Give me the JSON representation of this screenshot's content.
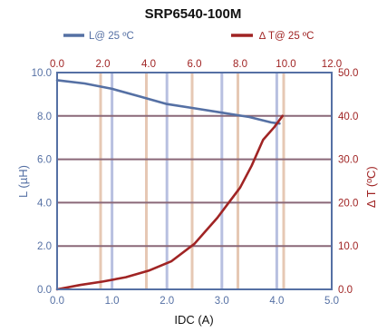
{
  "colors": {
    "inductance": "#5570a4",
    "temperature": "#a02424",
    "inductance_grid": "#b8c0e0",
    "temperature_grid": "#e6c8b4",
    "horizontal_grid": "#8a6878"
  },
  "chart_data": {
    "type": "line",
    "title": "SRP6540-100M",
    "xlabel": "IDC (A)",
    "ylabel_left": "L (µH)",
    "ylabel_right": "∆ T (ºC)",
    "xlim": [
      0,
      5.0
    ],
    "ylim_left": [
      0,
      10.0
    ],
    "ylim_right": [
      0,
      50.0
    ],
    "xlim_top": [
      0,
      12.0
    ],
    "x_ticks": [
      "0.0",
      "1.0",
      "2.0",
      "3.0",
      "4.0",
      "5.0"
    ],
    "x_top_ticks": [
      "0.0",
      "2.0",
      "4.0",
      "6.0",
      "8.0",
      "10.0",
      "12.0"
    ],
    "y_left_ticks": [
      "0.0",
      "2.0",
      "4.0",
      "6.0",
      "8.0",
      "10.0"
    ],
    "y_right_ticks": [
      "0.0",
      "10.0",
      "20.0",
      "30.0",
      "40.0",
      "50.0"
    ],
    "grid": true,
    "legend": "top",
    "series": [
      {
        "name": "L@ 25 ºC",
        "axis": "left",
        "x": [
          0,
          0.5,
          1.0,
          1.5,
          2.0,
          2.5,
          3.0,
          3.5,
          3.9,
          4.05
        ],
        "values": [
          9.65,
          9.5,
          9.25,
          8.9,
          8.55,
          8.35,
          8.15,
          7.95,
          7.7,
          7.65
        ]
      },
      {
        "name": "∆ T@ 25 ºC",
        "axis": "right",
        "x_top": [
          0,
          1.0,
          2.0,
          3.0,
          4.0,
          5.0,
          6.0,
          7.0,
          8.0,
          8.5,
          9.0,
          9.5,
          9.85
        ],
        "values": [
          0,
          1.0,
          1.8,
          2.8,
          4.3,
          6.5,
          10.5,
          16.5,
          23.5,
          28.5,
          34.5,
          37.5,
          40.0
        ]
      }
    ]
  }
}
